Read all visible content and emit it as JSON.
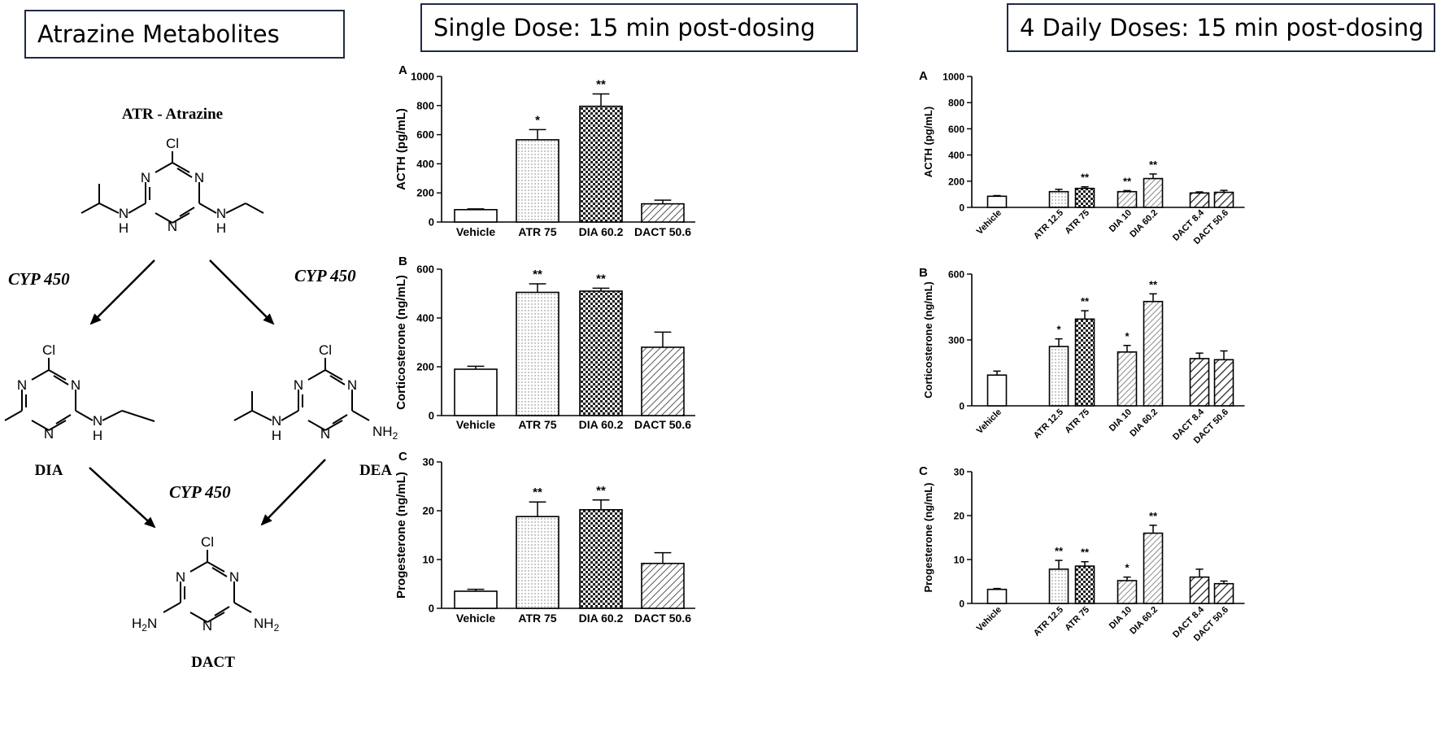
{
  "headers": {
    "metabolites": "Atrazine Metabolites",
    "single": "Single Dose:  15 min post-dosing",
    "daily": "4 Daily Doses: 15 min post-dosing"
  },
  "scheme": {
    "atr_title": "ATR - Atrazine",
    "cyp_left": "CYP 450",
    "cyp_right": "CYP 450",
    "cyp_bottom": "CYP 450",
    "dia": "DIA",
    "dea": "DEA",
    "dact": "DACT",
    "atoms": {
      "cl": "Cl",
      "n": "N",
      "h": "H",
      "nh2": "NH",
      "two": "2",
      "h2n": "H",
      "h2n_sub": "2",
      "h2n_n": "N"
    }
  },
  "chart_data": [
    {
      "id": "single-acth",
      "panel_label": "A",
      "type": "bar",
      "ylabel": "ACTH  (pg/mL)",
      "ylim": [
        0,
        1000
      ],
      "yticks": [
        0,
        200,
        400,
        600,
        800,
        1000
      ],
      "categories": [
        "Vehicle",
        "ATR 75",
        "DIA 60.2",
        "DACT 50.6"
      ],
      "values": [
        85,
        565,
        795,
        125
      ],
      "errors": [
        5,
        70,
        85,
        25
      ],
      "significance": [
        "",
        "*",
        "**",
        ""
      ],
      "patterns": [
        "white",
        "dots",
        "checker",
        "hatch"
      ]
    },
    {
      "id": "single-cort",
      "panel_label": "B",
      "type": "bar",
      "ylabel": "Corticosterone (ng/mL)",
      "ylim": [
        0,
        600
      ],
      "yticks": [
        0,
        200,
        400,
        600
      ],
      "categories": [
        "Vehicle",
        "ATR 75",
        "DIA 60.2",
        "DACT 50.6"
      ],
      "values": [
        190,
        505,
        510,
        280
      ],
      "errors": [
        12,
        35,
        12,
        62
      ],
      "significance": [
        "",
        "**",
        "**",
        ""
      ],
      "patterns": [
        "white",
        "dots",
        "checker",
        "hatch"
      ]
    },
    {
      "id": "single-prog",
      "panel_label": "C",
      "type": "bar",
      "ylabel": "Progesterone (ng/mL)",
      "ylim": [
        0,
        30
      ],
      "yticks": [
        0,
        10,
        20,
        30
      ],
      "categories": [
        "Vehicle",
        "ATR 75",
        "DIA 60.2",
        "DACT 50.6"
      ],
      "values": [
        3.5,
        18.8,
        20.2,
        9.2
      ],
      "errors": [
        0.4,
        3.0,
        2.0,
        2.2
      ],
      "significance": [
        "",
        "**",
        "**",
        ""
      ],
      "patterns": [
        "white",
        "dots",
        "checker",
        "hatch"
      ]
    },
    {
      "id": "daily-acth",
      "panel_label": "A",
      "type": "bar",
      "ylabel": "ACTH (pg/mL)",
      "ylim": [
        0,
        1000
      ],
      "yticks": [
        0,
        200,
        400,
        600,
        800,
        1000
      ],
      "categories": [
        "Vehicle",
        "ATR 12.5",
        "ATR 75",
        "DIA 10",
        "DIA 60.2",
        "DACT 8.4",
        "DACT 50.6"
      ],
      "values": [
        85,
        120,
        145,
        120,
        220,
        110,
        115
      ],
      "errors": [
        5,
        18,
        12,
        8,
        35,
        8,
        15
      ],
      "significance": [
        "",
        "",
        "**",
        "**",
        "**",
        "",
        ""
      ],
      "patterns": [
        "white",
        "dots",
        "checker",
        "hatch2",
        "hatch2",
        "hatch3",
        "hatch3"
      ]
    },
    {
      "id": "daily-cort",
      "panel_label": "B",
      "type": "bar",
      "ylabel": "Corticosterone (ng/mL)",
      "ylim": [
        0,
        600
      ],
      "yticks": [
        0,
        300,
        600
      ],
      "categories": [
        "Vehicle",
        "ATR 12.5",
        "ATR 75",
        "DIA 10",
        "DIA 60.2",
        "DACT 8.4",
        "DACT 50.6"
      ],
      "values": [
        140,
        270,
        395,
        245,
        475,
        215,
        210
      ],
      "errors": [
        18,
        35,
        38,
        30,
        35,
        25,
        40
      ],
      "significance": [
        "",
        "*",
        "**",
        "*",
        "**",
        "",
        ""
      ],
      "patterns": [
        "white",
        "dots",
        "checker",
        "hatch2",
        "hatch2",
        "hatch3",
        "hatch3"
      ]
    },
    {
      "id": "daily-prog",
      "panel_label": "C",
      "type": "bar",
      "ylabel": "Progesterone (ng/mL)",
      "ylim": [
        0,
        30
      ],
      "yticks": [
        0,
        10,
        20,
        30
      ],
      "categories": [
        "Vehicle",
        "ATR 12.5",
        "ATR 75",
        "DIA 10",
        "DIA 60.2",
        "DACT 8.4",
        "DACT 50.6"
      ],
      "values": [
        3.2,
        7.8,
        8.5,
        5.2,
        16.0,
        6.0,
        4.5
      ],
      "errors": [
        0.2,
        2.0,
        1.0,
        0.8,
        1.8,
        1.8,
        0.6
      ],
      "significance": [
        "",
        "**",
        "**",
        "*",
        "**",
        "",
        ""
      ],
      "patterns": [
        "white",
        "dots",
        "checker",
        "hatch2",
        "hatch2",
        "hatch3",
        "hatch3"
      ]
    }
  ]
}
